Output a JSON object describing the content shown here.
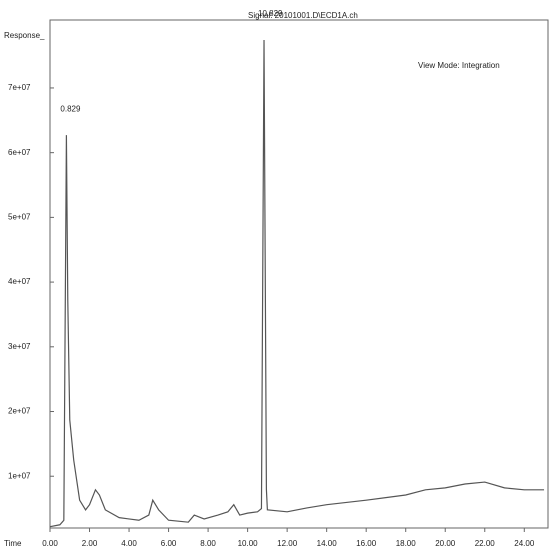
{
  "chart_data": {
    "type": "line",
    "y_label": "Response_",
    "x_label": "Time",
    "annotations": [
      "Signal: 20101001.D\\ECD1A.ch",
      "View Mode: Integration"
    ],
    "peak_labels": [
      "0.829",
      "10.829"
    ],
    "x": [
      0,
      0.5,
      0.7,
      0.83,
      0.9,
      1.0,
      1.2,
      1.5,
      1.8,
      2.0,
      2.3,
      2.5,
      2.8,
      3.5,
      4.5,
      5.0,
      5.2,
      5.5,
      6.0,
      7.0,
      7.3,
      7.8,
      8.5,
      9.0,
      9.3,
      9.6,
      10.0,
      10.5,
      10.7,
      10.83,
      10.95,
      11.0,
      12,
      13,
      14,
      16,
      18,
      19,
      20,
      21,
      22,
      23,
      24,
      25
    ],
    "series": [
      {
        "name": "Signal",
        "color": "#555555",
        "values": [
          2200000,
          2500000,
          3200000,
          62700000,
          37200000,
          18700000,
          12500000,
          6300000,
          4800000,
          5600000,
          7900000,
          7100000,
          4800000,
          3600000,
          3200000,
          4000000,
          6300000,
          4800000,
          3200000,
          2900000,
          4000000,
          3400000,
          4000000,
          4500000,
          5600000,
          4000000,
          4300000,
          4500000,
          5000000,
          77400000,
          8000000,
          4800000,
          4500000,
          5100000,
          5600000,
          6300000,
          7100000,
          7900000,
          8200000,
          8800000,
          9100000,
          8200000,
          7900000,
          7900000
        ]
      }
    ],
    "xlim": [
      0,
      25.2
    ],
    "ylim": [
      2000000,
      80500000
    ],
    "xticks": [
      {
        "value": 0,
        "label": "0.00"
      },
      {
        "value": 2,
        "label": "2.00"
      },
      {
        "value": 4,
        "label": "4.00"
      },
      {
        "value": 6,
        "label": "6.00"
      },
      {
        "value": 8,
        "label": "8.00"
      },
      {
        "value": 10,
        "label": "10.00"
      },
      {
        "value": 12,
        "label": "12.00"
      },
      {
        "value": 14,
        "label": "14.00"
      },
      {
        "value": 16,
        "label": "16.00"
      },
      {
        "value": 18,
        "label": "18.00"
      },
      {
        "value": 20,
        "label": "20.00"
      },
      {
        "value": 22,
        "label": "22.00"
      },
      {
        "value": 24,
        "label": "24.00"
      }
    ],
    "yticks": [
      {
        "value": 10000000,
        "label": "1e+07"
      },
      {
        "value": 20000000,
        "label": "2e+07"
      },
      {
        "value": 30000000,
        "label": "3e+07"
      },
      {
        "value": 40000000,
        "label": "4e+07"
      },
      {
        "value": 50000000,
        "label": "5e+07"
      },
      {
        "value": 60000000,
        "label": "6e+07"
      },
      {
        "value": 70000000,
        "label": "7e+07"
      }
    ]
  }
}
